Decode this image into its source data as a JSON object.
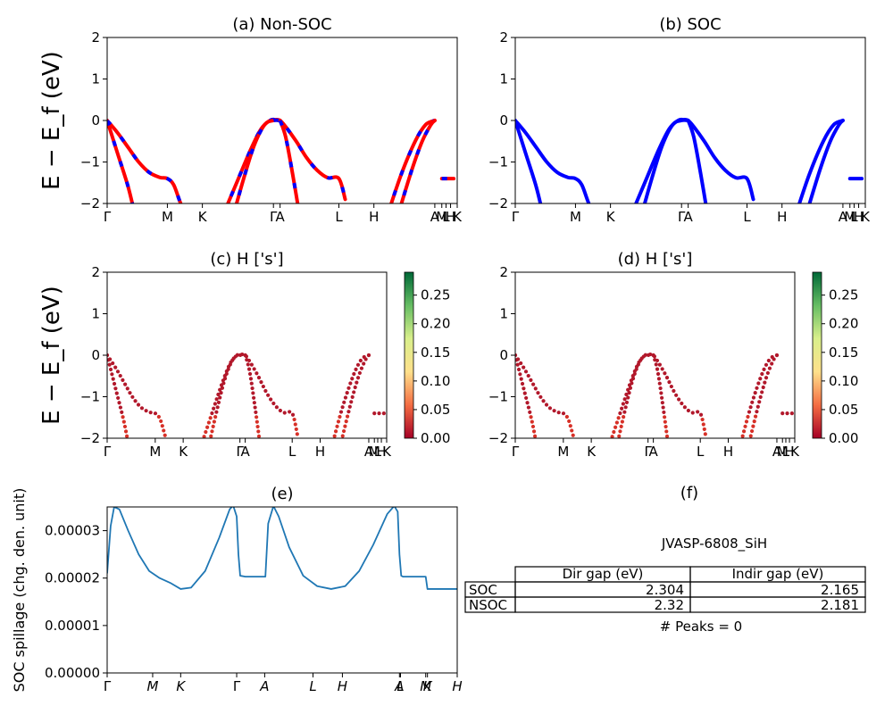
{
  "chart_data": [
    {
      "id": "a",
      "type": "line",
      "title": "(a) Non-SOC",
      "ylabel": "E − E_f (eV)",
      "ylim": [
        -2,
        2
      ],
      "yticks": [
        "2",
        "1",
        "0",
        "−1",
        "−2"
      ],
      "kpath_labels": [
        "Γ",
        "M",
        "K",
        "Γ",
        "A",
        "L",
        "H",
        "A",
        "M",
        "L",
        "H",
        "K"
      ],
      "kpath_positions": [
        0,
        0.172,
        0.272,
        0.475,
        0.494,
        0.662,
        0.762,
        0.936,
        0.956,
        0.968,
        0.981,
        1.0
      ],
      "series": [
        {
          "color": "#ff0000",
          "dashed_overlay": "#0000ff",
          "x": [
            0,
            0.03,
            0.06,
            0.09,
            0.12,
            0.15,
            0.172,
            0.19,
            0.21,
            0.24
          ],
          "y": [
            0,
            -0.3,
            -0.65,
            -1.0,
            -1.25,
            -1.37,
            -1.4,
            -1.55,
            -2.0,
            -2.6
          ]
        },
        {
          "color": "#ff0000",
          "dashed_overlay": "#0000ff",
          "x": [
            0,
            0.03,
            0.06,
            0.08
          ],
          "y": [
            0,
            -0.8,
            -1.6,
            -2.3
          ]
        },
        {
          "color": "#ff0000",
          "dashed_overlay": "#0000ff",
          "x": [
            0.33,
            0.37,
            0.41,
            0.44,
            0.465,
            0.48,
            0.494,
            0.51,
            0.54,
            0.57,
            0.6,
            0.63,
            0.662,
            0.68
          ],
          "y": [
            -2.3,
            -1.5,
            -0.7,
            -0.2,
            0,
            0.02,
            0,
            -0.15,
            -0.5,
            -0.9,
            -1.2,
            -1.38,
            -1.4,
            -1.9
          ]
        },
        {
          "color": "#ff0000",
          "dashed_overlay": "#0000ff",
          "x": [
            0.36,
            0.39,
            0.42,
            0.45,
            0.475,
            0.494
          ],
          "y": [
            -2.3,
            -1.4,
            -0.6,
            -0.1,
            0,
            0
          ]
        },
        {
          "color": "#ff0000",
          "dashed_overlay": "#0000ff",
          "x": [
            0.494,
            0.51,
            0.53,
            0.55
          ],
          "y": [
            0,
            -0.4,
            -1.3,
            -2.3
          ]
        },
        {
          "color": "#ff0000",
          "dashed_overlay": "#0000ff",
          "x": [
            0.8,
            0.84,
            0.88,
            0.91,
            0.936
          ],
          "y": [
            -2.3,
            -1.3,
            -0.5,
            -0.1,
            0
          ]
        },
        {
          "color": "#ff0000",
          "dashed_overlay": "#0000ff",
          "x": [
            0.83,
            0.87,
            0.9,
            0.925,
            0.936
          ],
          "y": [
            -2.3,
            -1.2,
            -0.5,
            -0.1,
            0
          ]
        },
        {
          "color": "#ff0000",
          "dashed_overlay": "#0000ff",
          "x": [
            0.956,
            0.99
          ],
          "y": [
            -1.4,
            -1.4
          ]
        }
      ]
    },
    {
      "id": "b",
      "type": "line",
      "title": "(b) SOC",
      "ylabel": "",
      "ylim": [
        -2,
        2
      ],
      "yticks": [
        "2",
        "1",
        "0",
        "−1",
        "−2"
      ],
      "kpath_labels": [
        "Γ",
        "M",
        "K",
        "Γ",
        "A",
        "L",
        "H",
        "A",
        "M",
        "L",
        "H",
        "K"
      ],
      "kpath_positions": [
        0,
        0.172,
        0.272,
        0.475,
        0.494,
        0.662,
        0.762,
        0.936,
        0.956,
        0.968,
        0.981,
        1.0
      ],
      "series": [
        {
          "color": "#0000ff",
          "x": [
            0,
            0.03,
            0.06,
            0.09,
            0.12,
            0.15,
            0.172,
            0.19,
            0.21,
            0.24
          ],
          "y": [
            0,
            -0.3,
            -0.65,
            -1.0,
            -1.25,
            -1.37,
            -1.4,
            -1.55,
            -2.0,
            -2.6
          ]
        },
        {
          "color": "#0000ff",
          "x": [
            0,
            0.03,
            0.06,
            0.08
          ],
          "y": [
            0,
            -0.8,
            -1.6,
            -2.3
          ]
        },
        {
          "color": "#0000ff",
          "x": [
            0.33,
            0.37,
            0.41,
            0.44,
            0.465,
            0.48,
            0.494,
            0.51,
            0.54,
            0.57,
            0.6,
            0.63,
            0.662,
            0.68
          ],
          "y": [
            -2.3,
            -1.5,
            -0.7,
            -0.2,
            0,
            0.02,
            0,
            -0.15,
            -0.5,
            -0.9,
            -1.2,
            -1.38,
            -1.4,
            -1.9
          ]
        },
        {
          "color": "#0000ff",
          "x": [
            0.36,
            0.39,
            0.42,
            0.45,
            0.475,
            0.494
          ],
          "y": [
            -2.3,
            -1.4,
            -0.6,
            -0.1,
            0,
            0
          ]
        },
        {
          "color": "#0000ff",
          "x": [
            0.494,
            0.51,
            0.53,
            0.55
          ],
          "y": [
            0,
            -0.4,
            -1.3,
            -2.3
          ]
        },
        {
          "color": "#0000ff",
          "x": [
            0.8,
            0.84,
            0.88,
            0.91,
            0.936
          ],
          "y": [
            -2.3,
            -1.3,
            -0.5,
            -0.1,
            0
          ]
        },
        {
          "color": "#0000ff",
          "x": [
            0.83,
            0.87,
            0.9,
            0.925,
            0.936
          ],
          "y": [
            -2.3,
            -1.2,
            -0.5,
            -0.1,
            0
          ]
        },
        {
          "color": "#0000ff",
          "x": [
            0.956,
            0.99
          ],
          "y": [
            -1.4,
            -1.4
          ]
        }
      ]
    },
    {
      "id": "c",
      "type": "scatter",
      "title": "(c)  H ['s']",
      "ylabel": "E − E_f (eV)",
      "ylim": [
        -2,
        2
      ],
      "yticks": [
        "2",
        "1",
        "0",
        "−1",
        "−2"
      ],
      "kpath_labels": [
        "Γ",
        "M",
        "K",
        "Γ",
        "A",
        "L",
        "H",
        "A",
        "M",
        "L",
        "H",
        "K"
      ],
      "kpath_positions": [
        0,
        0.172,
        0.272,
        0.475,
        0.494,
        0.662,
        0.762,
        0.936,
        0.956,
        0.968,
        0.981,
        1.0
      ],
      "colorbar": {
        "ticks": [
          "0.00",
          "0.05",
          "0.10",
          "0.15",
          "0.20",
          "0.25"
        ],
        "range": [
          0,
          0.29
        ],
        "colors": [
          "#a50026",
          "#f46d43",
          "#fee08b",
          "#d9ef8b",
          "#66bd63",
          "#006837"
        ]
      },
      "point_color": "#b2182b",
      "bands": [
        {
          "x": [
            0,
            0.172,
            0.24
          ],
          "y": [
            0,
            -1.4,
            -2.6
          ],
          "curve": "main"
        },
        {
          "x": [
            0,
            0.08
          ],
          "y": [
            0,
            -2.3
          ]
        },
        {
          "x": [
            0.33,
            0.48,
            0.662,
            0.68
          ],
          "y": [
            -2.3,
            0,
            -1.4,
            -1.9
          ]
        },
        {
          "x": [
            0.36,
            0.494
          ],
          "y": [
            -2.3,
            0
          ]
        },
        {
          "x": [
            0.494,
            0.55
          ],
          "y": [
            0,
            -2.3
          ]
        },
        {
          "x": [
            0.8,
            0.936
          ],
          "y": [
            -2.3,
            0
          ]
        },
        {
          "x": [
            0.83,
            0.936
          ],
          "y": [
            -2.3,
            0
          ]
        },
        {
          "x": [
            0.956,
            0.99
          ],
          "y": [
            -1.4,
            -1.4
          ]
        }
      ]
    },
    {
      "id": "d",
      "type": "scatter",
      "title": "(d) H ['s']",
      "ylabel": "",
      "ylim": [
        -2,
        2
      ],
      "yticks": [
        "2",
        "1",
        "0",
        "−1",
        "−2"
      ],
      "kpath_labels": [
        "Γ",
        "M",
        "K",
        "Γ",
        "A",
        "L",
        "H",
        "A",
        "M",
        "L",
        "H",
        "K"
      ],
      "kpath_positions": [
        0,
        0.172,
        0.272,
        0.475,
        0.494,
        0.662,
        0.762,
        0.936,
        0.956,
        0.968,
        0.981,
        1.0
      ],
      "colorbar": {
        "ticks": [
          "0.00",
          "0.05",
          "0.10",
          "0.15",
          "0.20",
          "0.25"
        ],
        "range": [
          0,
          0.29
        ],
        "colors": [
          "#a50026",
          "#f46d43",
          "#fee08b",
          "#d9ef8b",
          "#66bd63",
          "#006837"
        ]
      },
      "point_color": "#b2182b"
    },
    {
      "id": "e",
      "type": "line",
      "title": "(e)",
      "ylabel": "SOC spillage (chg. den. unit)",
      "ylim": [
        0,
        3.5e-05
      ],
      "yticks": [
        "0.00003",
        "0.00002",
        "0.00001",
        "0.00000"
      ],
      "ytick_values": [
        3e-05,
        2e-05,
        1e-05,
        0
      ],
      "kpath_labels": [
        "Γ",
        "M",
        "K",
        "Γ",
        "A",
        "L",
        "H",
        "A",
        "L",
        "M",
        "K",
        "H"
      ],
      "kpath_positions": [
        0,
        0.13,
        0.21,
        0.37,
        0.45,
        0.588,
        0.672,
        0.835,
        0.838,
        0.91,
        0.915,
        1.0
      ],
      "color": "#1f77b4",
      "x": [
        0,
        0.01,
        0.02,
        0.035,
        0.06,
        0.09,
        0.12,
        0.15,
        0.18,
        0.21,
        0.24,
        0.28,
        0.32,
        0.35,
        0.36,
        0.37,
        0.375,
        0.38,
        0.395,
        0.42,
        0.45,
        0.452,
        0.46,
        0.475,
        0.49,
        0.52,
        0.56,
        0.6,
        0.64,
        0.68,
        0.72,
        0.76,
        0.8,
        0.82,
        0.83,
        0.835,
        0.84,
        0.845,
        0.85,
        0.88,
        0.91,
        0.915,
        0.95,
        1.0
      ],
      "y": [
        2.1e-05,
        3.1e-05,
        3.5e-05,
        3.45e-05,
        3e-05,
        2.5e-05,
        2.15e-05,
        2e-05,
        1.9e-05,
        1.77e-05,
        1.8e-05,
        2.15e-05,
        2.85e-05,
        3.45e-05,
        3.53e-05,
        3.3e-05,
        2.5e-05,
        2.05e-05,
        2.03e-05,
        2.03e-05,
        2.03e-05,
        2.03e-05,
        3.15e-05,
        3.52e-05,
        3.3e-05,
        2.65e-05,
        2.05e-05,
        1.83e-05,
        1.77e-05,
        1.83e-05,
        2.15e-05,
        2.7e-05,
        3.35e-05,
        3.52e-05,
        3.4e-05,
        2.5e-05,
        2.05e-05,
        2.03e-05,
        2.03e-05,
        2.03e-05,
        2.03e-05,
        1.77e-05,
        1.77e-05,
        1.77e-05
      ]
    }
  ],
  "panel_f": {
    "title": "(f)",
    "material": "JVASP-6808_SiH",
    "table": {
      "headers": [
        "Dir gap (eV)",
        "Indir gap (eV)"
      ],
      "rows": [
        {
          "label": "SOC",
          "dir": "2.304",
          "indir": "2.165"
        },
        {
          "label": "NSOC",
          "dir": "2.32",
          "indir": "2.181"
        }
      ]
    },
    "peaks": "# Peaks = 0"
  }
}
